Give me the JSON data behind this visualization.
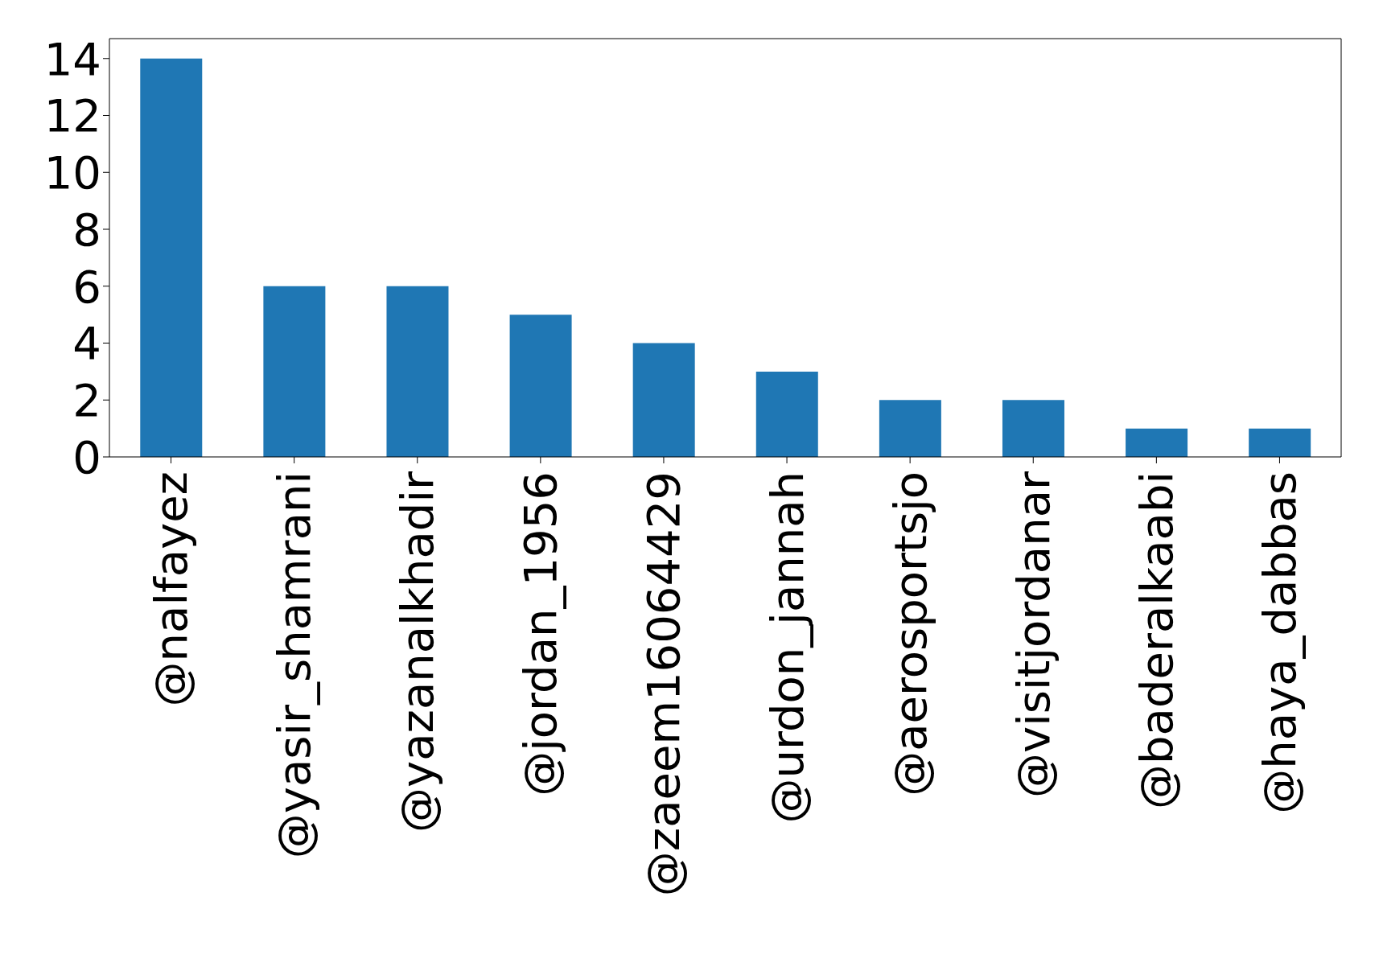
{
  "chart_data": {
    "type": "bar",
    "categories": [
      "@nalfayez",
      "@yasir_shamrani",
      "@yazanalkhadir",
      "@jordan_1956",
      "@zaeem16064429",
      "@urdon_jannah",
      "@aerosportsjo",
      "@visitjordanar",
      "@baderalkaabi",
      "@haya_dabbas"
    ],
    "values": [
      14,
      6,
      6,
      5,
      4,
      3,
      2,
      2,
      1,
      1
    ],
    "color": "#1f77b4",
    "ylim": [
      0,
      14.7
    ],
    "yticks": [
      0,
      2,
      4,
      6,
      8,
      10,
      12,
      14
    ],
    "grid": false
  }
}
